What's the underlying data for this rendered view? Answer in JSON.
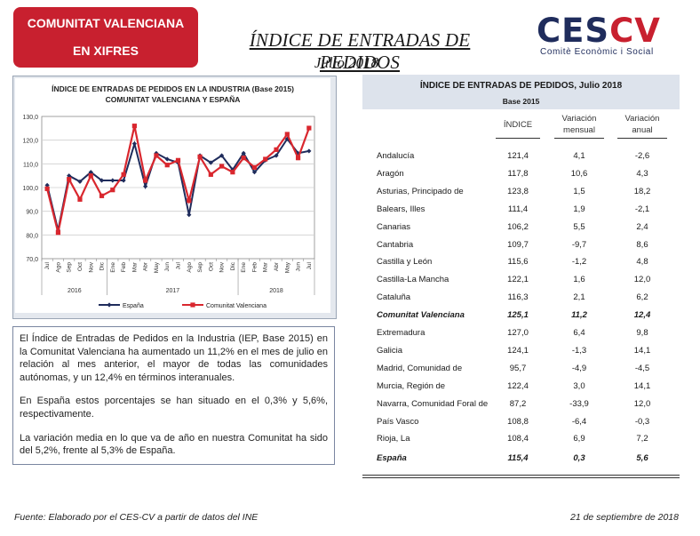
{
  "badge": {
    "line1": "COMUNITAT VALENCIANA",
    "line2": "EN XIFRES"
  },
  "title": "ÍNDICE DE ENTRADAS DE PEDIDOS",
  "subtitle": "Julio 2018",
  "logo": {
    "part1": "CES",
    "part2": "CV",
    "tagline": "Comitè Econòmic i Social"
  },
  "chart_data": {
    "type": "line",
    "title": "ÍNDICE DE ENTRADAS DE PEDIDOS EN LA INDUSTRIA (Base 2015)",
    "subtitle": "COMUNITAT VALENCIANA Y ESPAÑA",
    "categories": [
      "Jul",
      "Ago",
      "Sep",
      "Oct",
      "Nov",
      "Dic",
      "Ene",
      "Feb",
      "Mar",
      "Abr",
      "May",
      "Jun",
      "Jul",
      "Ago",
      "Sep",
      "Oct",
      "Nov",
      "Dic",
      "Ene",
      "Feb",
      "Mar",
      "Abr",
      "May",
      "Jun",
      "Jul"
    ],
    "year_labels": [
      "2016",
      "2017",
      "2018"
    ],
    "series": [
      {
        "name": "España",
        "color": "#1f2c5c",
        "values": [
          101.0,
          82.0,
          105.0,
          102.5,
          106.5,
          103.0,
          103.0,
          103.0,
          118.5,
          100.5,
          114.5,
          112.0,
          110.5,
          88.5,
          113.5,
          110.5,
          113.5,
          107.5,
          114.5,
          106.5,
          111.5,
          113.5,
          120.5,
          114.5,
          115.4
        ]
      },
      {
        "name": "Comunitat Valenciana",
        "color": "#d9272e",
        "values": [
          99.5,
          81.0,
          103.5,
          95.0,
          105.0,
          96.5,
          99.0,
          105.5,
          126.0,
          103.0,
          113.5,
          109.5,
          111.5,
          94.5,
          113.0,
          105.5,
          109.0,
          106.5,
          112.5,
          108.5,
          112.0,
          116.0,
          122.5,
          112.5,
          125.1
        ]
      }
    ],
    "yticks": [
      "70,0",
      "80,0",
      "90,0",
      "100,0",
      "110,0",
      "120,0",
      "130,0"
    ],
    "ylim": [
      70,
      130
    ],
    "grid": true,
    "legend": "bottom"
  },
  "text": {
    "p1": "El Índice de Entradas de Pedidos en la Industria (IEP, Base 2015) en la Comunitat Valenciana ha aumentado un 11,2% en el mes de julio en relación al mes anterior, el mayor de todas las comunidades autónomas, y un 12,4% en términos interanuales.",
    "p2": "En España estos porcentajes se han situado en el 0,3% y 5,6%, respectivamente.",
    "p3": "La variación media en lo que va de año en nuestra Comunitat ha sido del 5,2%, frente al 5,3% de España."
  },
  "table": {
    "title": "ÍNDICE DE ENTRADAS DE PEDIDOS, Julio 2018",
    "base": "Base 2015",
    "col1": "ÍNDICE",
    "col2a": "Variación",
    "col2b": "mensual",
    "col3a": "Variación",
    "col3b": "anual",
    "rows": [
      {
        "name": "Andalucía",
        "indice": "121,4",
        "mensual": "4,1",
        "anual": "-2,6"
      },
      {
        "name": "Aragón",
        "indice": "117,8",
        "mensual": "10,6",
        "anual": "4,3"
      },
      {
        "name": "Asturias, Principado de",
        "indice": "123,8",
        "mensual": "1,5",
        "anual": "18,2"
      },
      {
        "name": "Balears, Illes",
        "indice": "111,4",
        "mensual": "1,9",
        "anual": "-2,1"
      },
      {
        "name": "Canarias",
        "indice": "106,2",
        "mensual": "5,5",
        "anual": "2,4"
      },
      {
        "name": "Cantabria",
        "indice": "109,7",
        "mensual": "-9,7",
        "anual": "8,6"
      },
      {
        "name": "Castilla y León",
        "indice": "115,6",
        "mensual": "-1,2",
        "anual": "4,8"
      },
      {
        "name": "Castilla-La Mancha",
        "indice": "122,1",
        "mensual": "1,6",
        "anual": "12,0"
      },
      {
        "name": "Cataluña",
        "indice": "116,3",
        "mensual": "2,1",
        "anual": "6,2"
      },
      {
        "name": "Comunitat Valenciana",
        "indice": "125,1",
        "mensual": "11,2",
        "anual": "12,4"
      },
      {
        "name": "Extremadura",
        "indice": "127,0",
        "mensual": "6,4",
        "anual": "9,8"
      },
      {
        "name": "Galicia",
        "indice": "124,1",
        "mensual": "-1,3",
        "anual": "14,1"
      },
      {
        "name": "Madrid, Comunidad de",
        "indice": "95,7",
        "mensual": "-4,9",
        "anual": "-4,5"
      },
      {
        "name": "Murcia, Región de",
        "indice": "122,4",
        "mensual": "3,0",
        "anual": "14,1"
      },
      {
        "name": "Navarra, Comunidad Foral de",
        "indice": "87,2",
        "mensual": "-33,9",
        "anual": "12,0"
      },
      {
        "name": "País Vasco",
        "indice": "108,8",
        "mensual": "-6,4",
        "anual": "-0,3"
      },
      {
        "name": "Rioja, La",
        "indice": "108,4",
        "mensual": "6,9",
        "anual": "7,2"
      },
      {
        "name": "España",
        "indice": "115,4",
        "mensual": "0,3",
        "anual": "5,6"
      }
    ]
  },
  "footer": {
    "source": "Fuente: Elaborado por el CES-CV a partir de datos del INE",
    "date": "21 de septiembre de 2018"
  }
}
